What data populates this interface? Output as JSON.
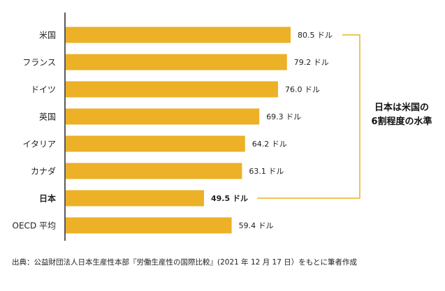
{
  "chart_data": {
    "type": "bar",
    "orientation": "horizontal",
    "categories": [
      "米国",
      "フランス",
      "ドイツ",
      "英国",
      "イタリア",
      "カナダ",
      "日本",
      "OECD 平均"
    ],
    "values": [
      80.5,
      79.2,
      76.0,
      69.3,
      64.2,
      63.1,
      49.5,
      59.4
    ],
    "value_labels": [
      "80.5 ドル",
      "79.2 ドル",
      "76.0 ドル",
      "69.3 ドル",
      "64.2 ドル",
      "63.1 ドル",
      "49.5 ドル",
      "59.4 ドル"
    ],
    "highlighted_category": "日本",
    "bar_color": "#ECB127",
    "annotation": {
      "line1": "日本は米国の",
      "line2": "6割程度の水準",
      "connects": [
        "米国",
        "日本"
      ]
    },
    "grid": false
  },
  "source": "出典：公益財団法人日本生産性本部『労働生産性の国際比較』(2021 年 12 月 17 日）をもとに筆者作成"
}
